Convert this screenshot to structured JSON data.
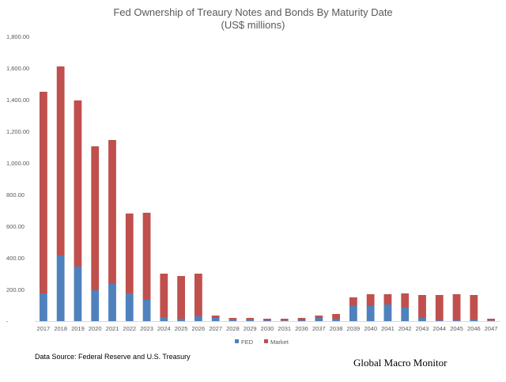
{
  "chart_data": {
    "type": "bar",
    "stacked": true,
    "title": "Fed Ownership of Treaury Notes and Bonds By Maturity Date",
    "subtitle": "(US$ millions)",
    "xlabel": "",
    "ylabel": "",
    "ylim": [
      0,
      1800
    ],
    "yticks": [
      "-",
      "200.00",
      "400.00",
      "600.00",
      "800.00",
      "1,000.00",
      "1,200.00",
      "1,400.00",
      "1,600.00",
      "1,800.00"
    ],
    "categories": [
      "2017",
      "2018",
      "2019",
      "2020",
      "2021",
      "2022",
      "2023",
      "2024",
      "2025",
      "2026",
      "2027",
      "2028",
      "2029",
      "2030",
      "2031",
      "2036",
      "2037",
      "2038",
      "2039",
      "2040",
      "2041",
      "2042",
      "2043",
      "2044",
      "2045",
      "2046",
      "2047"
    ],
    "series": [
      {
        "name": "FED",
        "color": "#4f81bd",
        "values": [
          175,
          415,
          345,
          195,
          235,
          175,
          135,
          25,
          15,
          30,
          20,
          8,
          8,
          5,
          3,
          5,
          20,
          15,
          95,
          95,
          105,
          85,
          20,
          5,
          5,
          10,
          3
        ]
      },
      {
        "name": "Market",
        "color": "#c0504d",
        "values": [
          1275,
          1195,
          1050,
          910,
          910,
          505,
          550,
          275,
          270,
          270,
          15,
          12,
          12,
          10,
          12,
          15,
          15,
          30,
          55,
          75,
          65,
          90,
          145,
          160,
          165,
          155,
          12
        ]
      }
    ],
    "legend_position": "bottom"
  },
  "footer": {
    "source": "Data Source:  Federal Reserve and U.S. Treasury",
    "brand": "Global Macro Monitor"
  }
}
